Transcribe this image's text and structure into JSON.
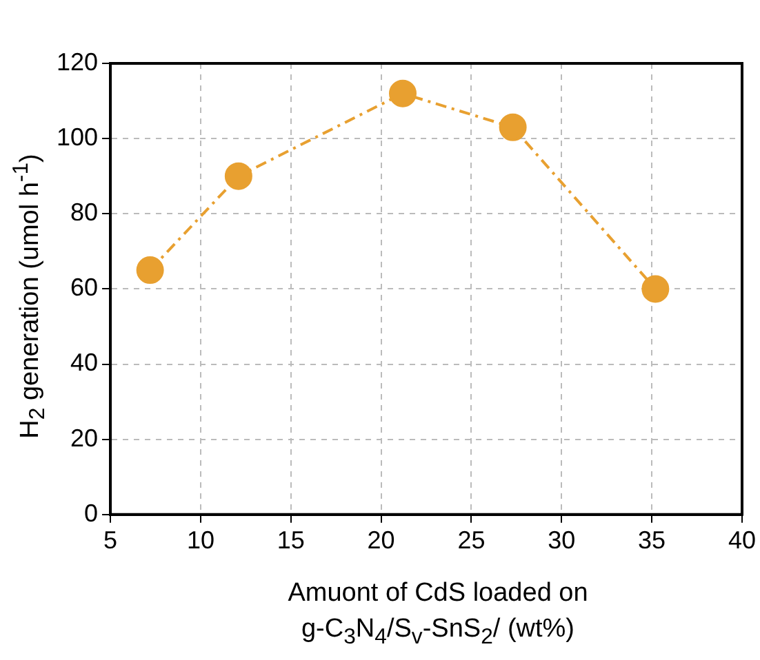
{
  "chart_data": {
    "type": "line",
    "xlabel": "Amuont of CdS loaded on\ng-C$_{3}$N$_{4}$/S$_{v}$-SnS$_{2}$/ (wt%)",
    "ylabel": "H$_{2}$ generation (umol h$^{-1}$)",
    "x": [
      7.2,
      12.1,
      21.2,
      27.3,
      35.2
    ],
    "series": [
      {
        "color": "#e8a030",
        "values": [
          65,
          90,
          112,
          103,
          60
        ]
      }
    ],
    "xlim": [
      5,
      40
    ],
    "xticks": [
      5,
      10,
      15,
      20,
      25,
      30,
      35,
      40
    ],
    "ylim": [
      0,
      120
    ],
    "yticks": [
      0,
      20,
      40,
      60,
      80,
      100,
      120
    ],
    "grid": true,
    "legend": false,
    "marker": "circle",
    "line_style": "dashed"
  }
}
